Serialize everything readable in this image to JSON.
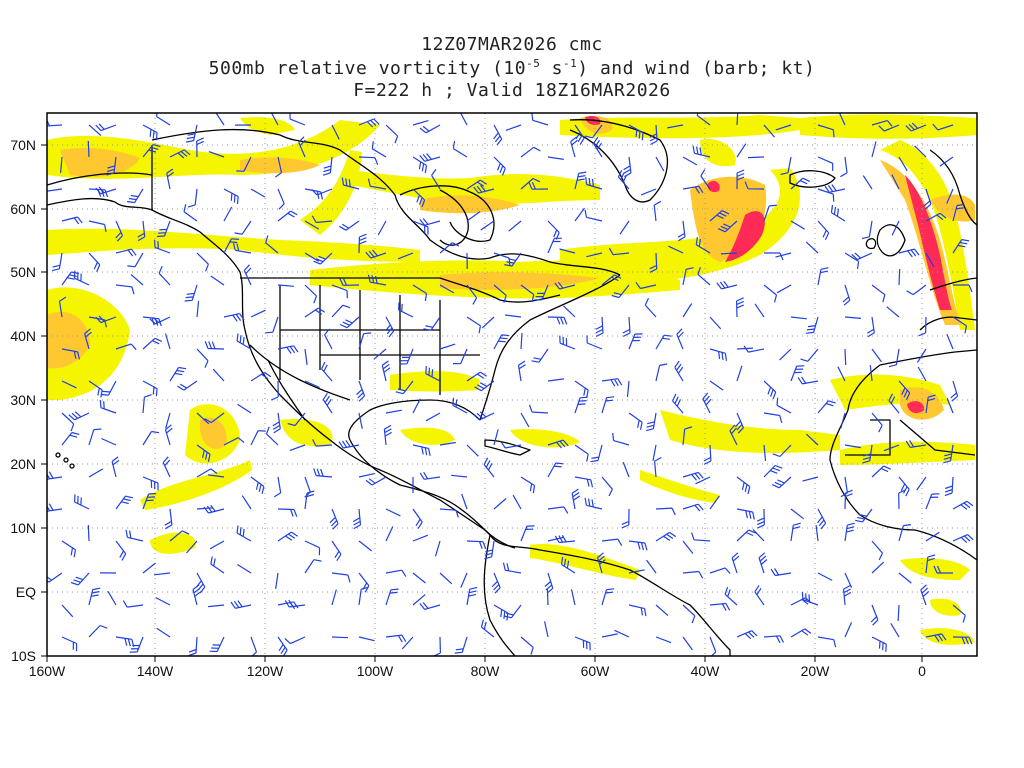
{
  "title": {
    "line1": "12Z07MAR2026 cmc",
    "line2_prefix": "500mb relative vorticity (10",
    "line2_exp1": "-5",
    "line2_mid": " s",
    "line2_exp2": "-1",
    "line2_suffix": ") and wind (barb; kt)",
    "line3": "F=222 h ; Valid 18Z16MAR2026"
  },
  "map": {
    "lon_range": [
      -160,
      10
    ],
    "lat_range": [
      -10,
      75
    ],
    "x_ticks": [
      "160W",
      "140W",
      "120W",
      "100W",
      "80W",
      "60W",
      "40W",
      "20W",
      "0"
    ],
    "y_ticks": [
      "10S",
      "EQ",
      "10N",
      "20N",
      "30N",
      "40N",
      "50N",
      "60N",
      "70N"
    ],
    "grid": "dotted",
    "colors": {
      "vort_low": "#f5f500",
      "vort_mid": "#ffc830",
      "vort_high": "#ff9a2a",
      "vort_max": "#ff2a55",
      "barb": "#2040e0",
      "coast": "#000000"
    }
  }
}
